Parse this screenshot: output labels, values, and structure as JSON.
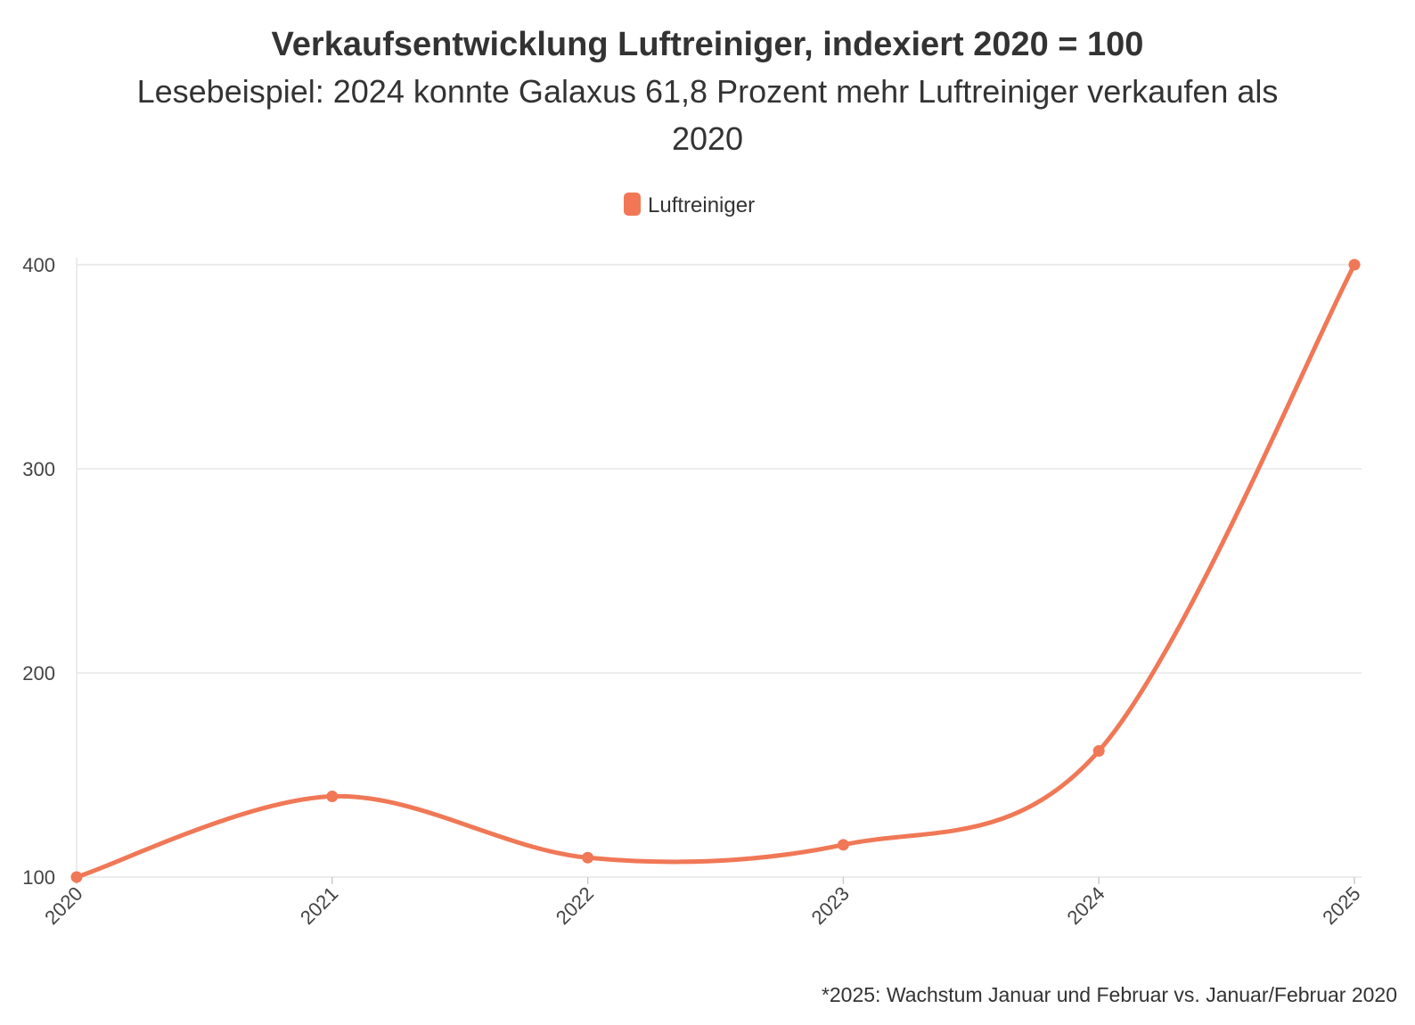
{
  "chart_data": {
    "type": "line",
    "title": "Verkaufsentwicklung Luftreiniger, indexiert 2020 = 100",
    "subtitle_line1": "Lesebeispiel: 2024 konnte Galaxus 61,8 Prozent mehr Luftreiniger verkaufen als",
    "subtitle_line2": "2020",
    "x": [
      "2020",
      "2021",
      "2022",
      "2023",
      "2024",
      "2025"
    ],
    "series": [
      {
        "name": "Luftreiniger",
        "values": [
          100,
          139.5,
          109.5,
          115.8,
          161.8,
          400
        ],
        "color": "#f07856"
      }
    ],
    "ylim": [
      100,
      400
    ],
    "yticks": [
      100,
      200,
      300,
      400
    ],
    "grid": true,
    "legend_position": "top-center",
    "smooth": true,
    "footnote": "*2025: Wachstum Januar und Februar vs. Januar/Februar 2020"
  }
}
